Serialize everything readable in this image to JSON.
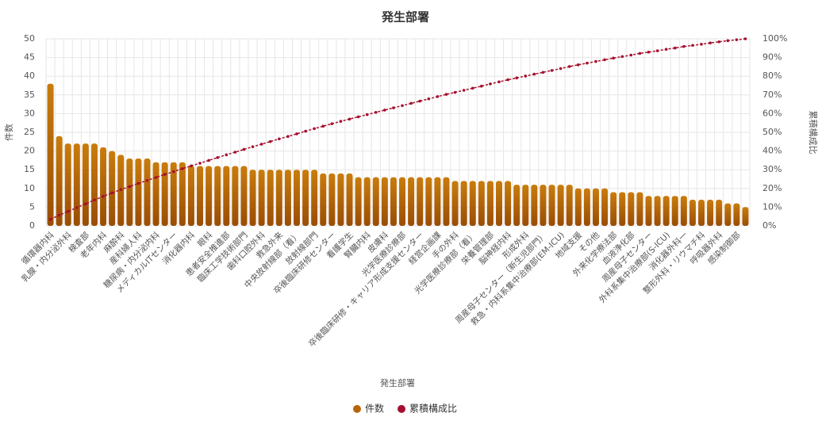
{
  "chart_data": {
    "type": "pareto",
    "title": "発生部署",
    "x_label": "発生部署",
    "y_label": "件数",
    "y2_label": "累積構成比",
    "categories": [
      "循環器内科",
      null,
      "乳腺・内分泌外科",
      null,
      "検査部",
      null,
      "老年内科",
      null,
      "麻酔科",
      null,
      "産科婦人科",
      null,
      "糖尿病・内分泌内科",
      null,
      "メディカルITセンター",
      null,
      "消化器内科",
      null,
      "眼科",
      null,
      "患者安全推進部",
      null,
      "臨床工学技術部門",
      null,
      "歯科口腔外科",
      null,
      "救急外来",
      null,
      "中央放射線部（看）",
      null,
      "放射線部門",
      null,
      "卒後臨床研修センター",
      null,
      "看護学生",
      null,
      "腎臓内科",
      null,
      "皮膚科",
      null,
      "光学医療診療部",
      null,
      "卒後臨床研修・キャリア形成支援センター",
      null,
      "経営企画課",
      null,
      "手の外科",
      null,
      "光学医療診療部（看）",
      null,
      "栄養管理部",
      null,
      "脳神経内科",
      null,
      "形成外科",
      null,
      "周産母子センター（新生児部門）",
      null,
      "救急・内科系集中治療部(EM-ICU)",
      null,
      "地域支援",
      null,
      "その他",
      null,
      "外来化学療法部",
      null,
      "血液浄化部",
      null,
      "周産母子センター",
      null,
      "外科系集中治療部(S-ICU)",
      null,
      "消化器外科一",
      null,
      "整形外科・リウマチ科",
      null,
      "呼吸器外科",
      null,
      "感染制御部",
      null
    ],
    "series": [
      {
        "name": "件数",
        "color": "#b8650a",
        "values": [
          38,
          24,
          22,
          22,
          22,
          22,
          21,
          20,
          19,
          18,
          18,
          18,
          17,
          17,
          17,
          17,
          16,
          16,
          16,
          16,
          16,
          16,
          16,
          15,
          15,
          15,
          15,
          15,
          15,
          15,
          15,
          14,
          14,
          14,
          14,
          13,
          13,
          13,
          13,
          13,
          13,
          13,
          13,
          13,
          13,
          13,
          12,
          12,
          12,
          12,
          12,
          12,
          12,
          11,
          11,
          11,
          11,
          11,
          11,
          11,
          10,
          10,
          10,
          10,
          9,
          9,
          9,
          9,
          8,
          8,
          8,
          8,
          8,
          7,
          7,
          7,
          7,
          6,
          6,
          5
        ]
      },
      {
        "name": "累積構成比",
        "color": "#a50e2d",
        "axis": "y2",
        "values": [
          3.5,
          5.7,
          7.7,
          9.8,
          11.8,
          13.8,
          15.8,
          17.6,
          19.4,
          21.0,
          22.7,
          24.3,
          25.9,
          27.5,
          29.0,
          30.6,
          32.1,
          33.5,
          35.0,
          36.5,
          38.0,
          39.4,
          40.9,
          42.3,
          43.7,
          45.1,
          46.5,
          47.8,
          49.2,
          50.6,
          52.0,
          53.3,
          54.6,
          55.9,
          57.1,
          58.3,
          59.5,
          60.7,
          61.9,
          63.1,
          64.3,
          65.5,
          66.7,
          67.9,
          69.1,
          70.3,
          71.4,
          72.5,
          73.6,
          74.7,
          75.9,
          77.0,
          78.1,
          79.1,
          80.1,
          81.1,
          82.1,
          83.1,
          84.1,
          85.2,
          86.1,
          87.0,
          87.9,
          88.8,
          89.7,
          90.5,
          91.3,
          92.2,
          92.9,
          93.6,
          94.4,
          95.1,
          95.9,
          96.5,
          97.1,
          97.8,
          98.4,
          99.0,
          99.5,
          100
        ]
      }
    ],
    "ylim": [
      0,
      50
    ],
    "yticks": [
      0,
      5,
      10,
      15,
      20,
      25,
      30,
      35,
      40,
      45,
      50
    ],
    "y2lim": [
      0,
      100
    ],
    "y2ticks": [
      {
        "value": 0,
        "label": "0%"
      },
      {
        "value": 10,
        "label": "10%"
      },
      {
        "value": 20,
        "label": "20%"
      },
      {
        "value": 30,
        "label": "30%"
      },
      {
        "value": 40,
        "label": "40%"
      },
      {
        "value": 50,
        "label": "50%"
      },
      {
        "value": 60,
        "label": "60%"
      },
      {
        "value": 70,
        "label": "70%"
      },
      {
        "value": 80,
        "label": "80%"
      },
      {
        "value": 90,
        "label": "90%"
      },
      {
        "value": 100,
        "label": "100%"
      }
    ],
    "grid": true,
    "legend": "bottom"
  }
}
